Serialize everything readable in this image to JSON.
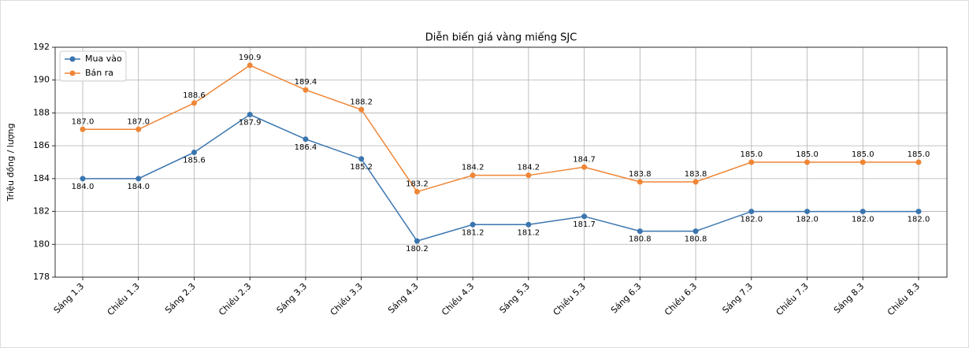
{
  "chart_data": {
    "type": "line",
    "title": "Diễn biến giá vàng miếng SJC",
    "ylabel": "Triệu đồng / lượng",
    "categories": [
      "Sáng 1.3",
      "Chiều 1.3",
      "Sáng 2.3",
      "Chiều 2.3",
      "Sáng 3.3",
      "Chiều 3.3",
      "Sáng 4.3",
      "Chiều 4.3",
      "Sáng 5.3",
      "Chiều 5.3",
      "Sáng 6.3",
      "Chiều 6.3",
      "Sáng 7.3",
      "Chiều 7.3",
      "Sáng 8.3",
      "Chiều 8.3"
    ],
    "series": [
      {
        "name": "Mua vào",
        "color": "#3a75af",
        "values": [
          184.0,
          184.0,
          185.6,
          187.9,
          186.4,
          185.2,
          180.2,
          181.2,
          181.2,
          181.7,
          180.8,
          180.8,
          182.0,
          182.0,
          182.0,
          182.0
        ],
        "value_labels": [
          "184.0",
          "184.0",
          "185.6",
          "187.9",
          "186.4",
          "185.2",
          "180.2",
          "181.2",
          "181.2",
          "181.7",
          "180.8",
          "180.8",
          "182.0",
          "182.0",
          "182.0",
          "182.0"
        ]
      },
      {
        "name": "Bán ra",
        "color": "#ef8636",
        "values": [
          187.0,
          187.0,
          188.6,
          190.9,
          189.4,
          188.2,
          183.2,
          184.2,
          184.2,
          184.7,
          183.8,
          183.8,
          185.0,
          185.0,
          185.0,
          185.0
        ],
        "value_labels": [
          "187.0",
          "187.0",
          "188.6",
          "190.9",
          "189.4",
          "188.2",
          "183.2",
          "184.2",
          "184.2",
          "184.7",
          "183.8",
          "183.8",
          "185.0",
          "185.0",
          "185.0",
          "185.0"
        ]
      }
    ],
    "ylim": [
      178,
      192
    ],
    "yticks": [
      178,
      180,
      182,
      184,
      186,
      188,
      190,
      192
    ],
    "grid": true,
    "legend": "upper left"
  }
}
